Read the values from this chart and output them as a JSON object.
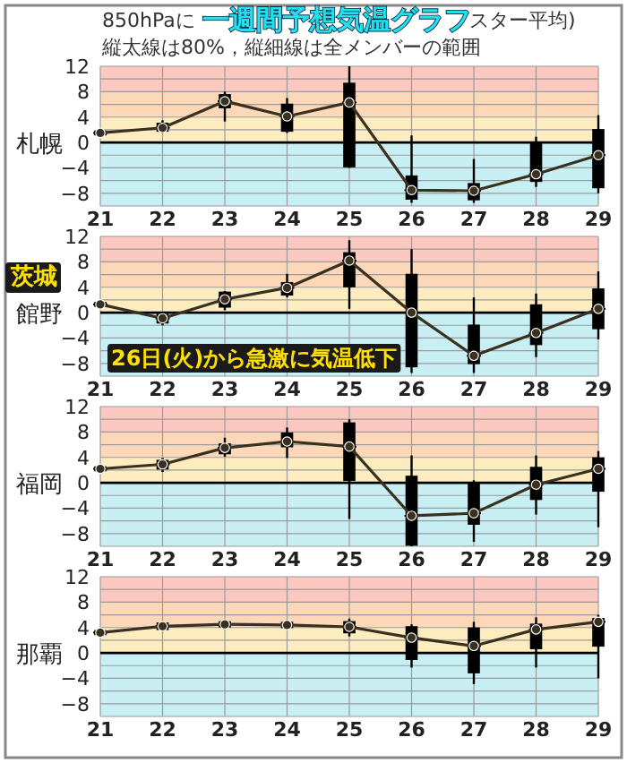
{
  "chart_data": [
    {
      "type": "box",
      "title": "一週間予想気温グラフ",
      "subtitle": "縦太線は80%，縦細線は全メンバーの範囲",
      "ylabel": "札幌",
      "annotations": [
        "850hPaに",
        "スター平均)"
      ],
      "categories": [
        "21",
        "22",
        "23",
        "24",
        "25",
        "26",
        "27",
        "28",
        "29"
      ],
      "ylim": [
        -10,
        12
      ],
      "yticks": [
        {
          "value": -10,
          "label": null
        },
        -8,
        {
          "value": -6,
          "label": null
        },
        -4,
        {
          "value": -2,
          "label": null
        },
        0,
        {
          "value": 2,
          "label": null
        },
        4,
        {
          "value": 6,
          "label": null
        },
        8,
        {
          "value": 10,
          "label": null
        },
        12
      ],
      "grid": true,
      "color": "#000000",
      "boxes": [
        {
          "low": 1.5,
          "q1": 1.5,
          "median": 1.5,
          "q3": 1.5,
          "high": 1.5
        },
        {
          "low": 1.5,
          "q1": 1.8,
          "median": 2.3,
          "q3": 3,
          "high": 3.5
        },
        {
          "low": 3.3,
          "q1": 5.5,
          "median": 6.5,
          "q3": 7.5,
          "high": 8
        },
        {
          "low": 1.5,
          "q1": 1.8,
          "median": 4.1,
          "q3": 6,
          "high": 7
        },
        {
          "low": -4,
          "q1": -3.8,
          "median": 6.3,
          "q3": 9.3,
          "high": 12
        },
        {
          "low": -9.5,
          "q1": -8.9,
          "median": -7.5,
          "q3": -5.3,
          "high": 1.1
        },
        {
          "low": -9.5,
          "q1": -9,
          "median": -7.6,
          "q3": -6.5,
          "high": -2.6
        },
        {
          "low": -7,
          "q1": -6.1,
          "median": -5,
          "q3": -0.2,
          "high": 0.9
        },
        {
          "low": -8,
          "q1": -7.1,
          "median": -2,
          "q3": 2,
          "high": 4.3
        }
      ],
      "series": [
        {
          "type": "line",
          "color": "#3a3020",
          "marker": "circle",
          "values": [
            1.5,
            2.3,
            6.5,
            4.1,
            6.3,
            -7.5,
            -7.6,
            -5,
            -2
          ]
        }
      ],
      "bands": [
        {
          "axis": "y",
          "from": 8,
          "to": 12,
          "color": "#fcc8c0"
        },
        {
          "axis": "y",
          "from": 4,
          "to": 8,
          "color": "#fcd8b8"
        },
        {
          "axis": "y",
          "from": 0,
          "to": 4,
          "color": "#fcecc0"
        },
        {
          "axis": "y",
          "from": -10,
          "to": 0,
          "color": "#c8f0f4"
        }
      ],
      "ref_lines": [
        {
          "axis": "y",
          "value": 0,
          "color": "#000000"
        }
      ]
    },
    {
      "type": "box",
      "ylabel": "館野",
      "annotations": [
        "茨城",
        "26日(火)から急激に気温低下"
      ],
      "categories": [
        "21",
        "22",
        "23",
        "24",
        "25",
        "26",
        "27",
        "28",
        "29"
      ],
      "ylim": [
        -10,
        12
      ],
      "yticks": [
        {
          "value": -10,
          "label": null
        },
        -8,
        {
          "value": -6,
          "label": null
        },
        -4,
        {
          "value": -2,
          "label": null
        },
        0,
        {
          "value": 2,
          "label": null
        },
        4,
        {
          "value": 6,
          "label": null
        },
        8,
        {
          "value": 10,
          "label": null
        },
        12
      ],
      "grid": true,
      "color": "#000000",
      "boxes": [
        {
          "low": 1.3,
          "q1": 1.3,
          "median": 1.3,
          "q3": 1.3,
          "high": 1.3
        },
        {
          "low": -2,
          "q1": -1.6,
          "median": -0.9,
          "q3": -0.3,
          "high": 0
        },
        {
          "low": 0.4,
          "q1": 0.9,
          "median": 2.1,
          "q3": 3.2,
          "high": 3.4
        },
        {
          "low": 2.4,
          "q1": 2.8,
          "median": 3.9,
          "q3": 4.7,
          "high": 6.1
        },
        {
          "low": 0.6,
          "q1": 4.1,
          "median": 8.2,
          "q3": 9.4,
          "high": 11.4
        },
        {
          "low": -9.5,
          "q1": -8.5,
          "median": 0,
          "q3": 6,
          "high": 10
        },
        {
          "low": -9.5,
          "q1": -8,
          "median": -6.8,
          "q3": -2,
          "high": 2.4
        },
        {
          "low": -7,
          "q1": -5,
          "median": -3.2,
          "q3": 1.2,
          "high": 3
        },
        {
          "low": -4.2,
          "q1": -2.5,
          "median": 0.6,
          "q3": 3.7,
          "high": 6.5
        }
      ],
      "series": [
        {
          "type": "line",
          "color": "#3a3020",
          "marker": "circle",
          "values": [
            1.3,
            -0.9,
            2.1,
            3.9,
            8.2,
            0,
            -6.8,
            -3.2,
            0.6
          ]
        }
      ],
      "bands": [
        {
          "axis": "y",
          "from": 8,
          "to": 12,
          "color": "#fcc8c0"
        },
        {
          "axis": "y",
          "from": 4,
          "to": 8,
          "color": "#fcd8b8"
        },
        {
          "axis": "y",
          "from": 0,
          "to": 4,
          "color": "#fcecc0"
        },
        {
          "axis": "y",
          "from": -10,
          "to": 0,
          "color": "#c8f0f4"
        }
      ],
      "ref_lines": [
        {
          "axis": "y",
          "value": 0,
          "color": "#000000"
        }
      ]
    },
    {
      "type": "box",
      "ylabel": "福岡",
      "categories": [
        "21",
        "22",
        "23",
        "24",
        "25",
        "26",
        "27",
        "28",
        "29"
      ],
      "ylim": [
        -10,
        12
      ],
      "yticks": [
        {
          "value": -10,
          "label": null
        },
        -8,
        {
          "value": -6,
          "label": null
        },
        -4,
        {
          "value": -2,
          "label": null
        },
        0,
        {
          "value": 2,
          "label": null
        },
        4,
        {
          "value": 6,
          "label": null
        },
        8,
        {
          "value": 10,
          "label": null
        },
        12
      ],
      "grid": true,
      "color": "#000000",
      "boxes": [
        {
          "low": 2.2,
          "q1": 2.2,
          "median": 2.2,
          "q3": 2.2,
          "high": 2.2
        },
        {
          "low": 1.7,
          "q1": 2.2,
          "median": 2.9,
          "q3": 3.5,
          "high": 3.9
        },
        {
          "low": 4.1,
          "q1": 4.6,
          "median": 5.5,
          "q3": 6.1,
          "high": 7.1
        },
        {
          "low": 3.9,
          "q1": 5.7,
          "median": 6.5,
          "q3": 7.8,
          "high": 8.7
        },
        {
          "low": -5.7,
          "q1": 0.4,
          "median": 5.7,
          "q3": 9.4,
          "high": 10
        },
        {
          "low": -10,
          "q1": -9.8,
          "median": -5.2,
          "q3": 1,
          "high": 4.3
        },
        {
          "low": -9.3,
          "q1": -6.5,
          "median": -4.8,
          "q3": 0,
          "high": 0.4
        },
        {
          "low": -5,
          "q1": -2.6,
          "median": -0.3,
          "q3": 2.4,
          "high": 4.3
        },
        {
          "low": -7,
          "q1": -1.3,
          "median": 2.2,
          "q3": 3.9,
          "high": 5
        }
      ],
      "series": [
        {
          "type": "line",
          "color": "#3a3020",
          "marker": "circle",
          "values": [
            2.2,
            2.9,
            5.5,
            6.5,
            5.7,
            -5.2,
            -4.8,
            -0.3,
            2.2
          ]
        }
      ],
      "bands": [
        {
          "axis": "y",
          "from": 8,
          "to": 12,
          "color": "#fcc8c0"
        },
        {
          "axis": "y",
          "from": 4,
          "to": 8,
          "color": "#fcd8b8"
        },
        {
          "axis": "y",
          "from": 0,
          "to": 4,
          "color": "#fcecc0"
        },
        {
          "axis": "y",
          "from": -10,
          "to": 0,
          "color": "#c8f0f4"
        }
      ],
      "ref_lines": [
        {
          "axis": "y",
          "value": 0,
          "color": "#000000"
        }
      ]
    },
    {
      "type": "box",
      "ylabel": "那覇",
      "categories": [
        "21",
        "22",
        "23",
        "24",
        "25",
        "26",
        "27",
        "28",
        "29"
      ],
      "ylim": [
        -10,
        12
      ],
      "yticks": [
        {
          "value": -10,
          "label": null
        },
        -8,
        {
          "value": -6,
          "label": null
        },
        -4,
        {
          "value": -2,
          "label": null
        },
        0,
        {
          "value": 2,
          "label": null
        },
        4,
        {
          "value": 6,
          "label": null
        },
        8,
        {
          "value": 10,
          "label": null
        },
        12
      ],
      "grid": true,
      "color": "#000000",
      "boxes": [
        {
          "low": 3.2,
          "q1": 3.2,
          "median": 3.2,
          "q3": 3.2,
          "high": 3.2
        },
        {
          "low": 3.9,
          "q1": 4,
          "median": 4.2,
          "q3": 4.4,
          "high": 4.5
        },
        {
          "low": 4.3,
          "q1": 4.4,
          "median": 4.5,
          "q3": 4.6,
          "high": 4.7
        },
        {
          "low": 4.2,
          "q1": 4.3,
          "median": 4.4,
          "q3": 4.5,
          "high": 4.6
        },
        {
          "low": 2.6,
          "q1": 3.2,
          "median": 4.1,
          "q3": 4.9,
          "high": 5.4
        },
        {
          "low": -2.3,
          "q1": -1,
          "median": 2.4,
          "q3": 4.1,
          "high": 4.5
        },
        {
          "low": -4.9,
          "q1": -3.1,
          "median": 1.1,
          "q3": 3.9,
          "high": 4.9
        },
        {
          "low": -2.3,
          "q1": 0.7,
          "median": 3.7,
          "q3": 4.5,
          "high": 5.6
        },
        {
          "low": -4,
          "q1": 1.1,
          "median": 4.9,
          "q3": 5.4,
          "high": 6
        }
      ],
      "series": [
        {
          "type": "line",
          "color": "#3a3020",
          "marker": "circle",
          "values": [
            3.2,
            4.2,
            4.5,
            4.4,
            4.1,
            2.4,
            1.1,
            3.7,
            4.9
          ]
        }
      ],
      "bands": [
        {
          "axis": "y",
          "from": 8,
          "to": 12,
          "color": "#fcc8c0"
        },
        {
          "axis": "y",
          "from": 4,
          "to": 8,
          "color": "#fcd8b8"
        },
        {
          "axis": "y",
          "from": 0,
          "to": 4,
          "color": "#fcecc0"
        },
        {
          "axis": "y",
          "from": -10,
          "to": 0,
          "color": "#c8f0f4"
        }
      ],
      "ref_lines": [
        {
          "axis": "y",
          "value": 0,
          "color": "#000000"
        }
      ]
    }
  ]
}
